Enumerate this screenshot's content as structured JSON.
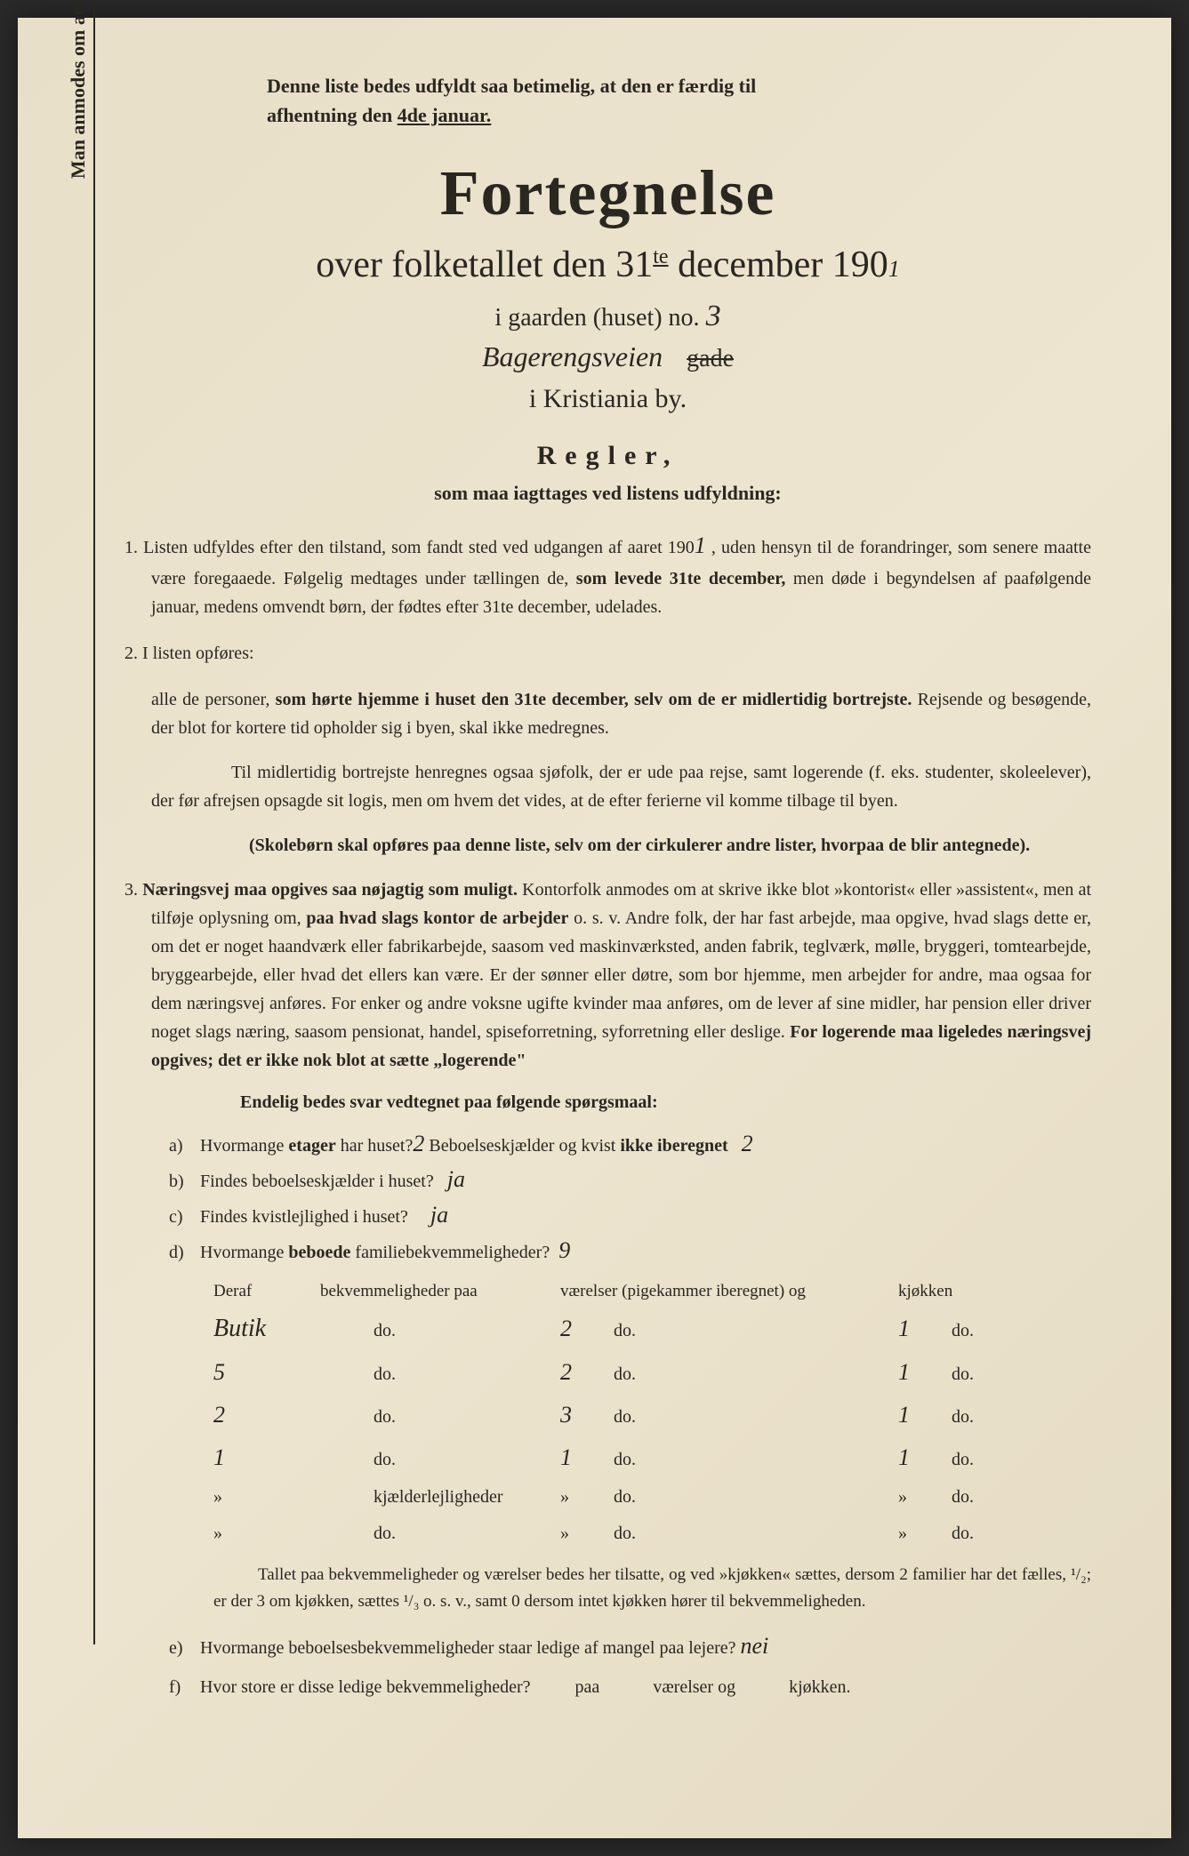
{
  "vertical_note": "Man anmodes om at gjennemlæse og nøje at befølge de paa fortegnelsen trykte overskrifter og anvisninger.",
  "header_note_1": "Denne liste bedes udfyldt saa betimelig, at den er færdig til",
  "header_note_2": "afhentning den ",
  "header_note_date": "4de januar.",
  "title": "Fortegnelse",
  "subtitle_1": "over folketallet den 31",
  "subtitle_sup": "te",
  "subtitle_2": " december 190",
  "year_hw": "1",
  "gaard_label": "i gaarden (huset) no. ",
  "gaard_no": "3",
  "street_hw": "Bagerengsveien",
  "gade_label": "gade",
  "city": "i Kristiania by.",
  "regler": "Regler,",
  "regler_sub": "som maa iagttages ved listens udfyldning:",
  "rule1_a": "1. Listen udfyldes efter den tilstand, som fandt sted ved udgangen af aaret 190",
  "rule1_year": "1",
  "rule1_b": " , uden hensyn til de forandringer, som senere maatte være foregaaede. Følgelig medtages under tællingen de, ",
  "rule1_bold": "som levede 31te december,",
  "rule1_c": " men døde i begyndelsen af paafølgende januar, medens omvendt børn, der fødtes efter 31te december, udelades.",
  "rule2_head": "2. I listen opføres:",
  "rule2_a": "alle de personer, ",
  "rule2_bold": "som hørte hjemme i huset den 31te december, selv om de er midlertidig bortrejste.",
  "rule2_b": " Rejsende og besøgende, der blot for kortere tid opholder sig i byen, skal ikke medregnes.",
  "rule2_p2": "Til midlertidig bortrejste henregnes ogsaa sjøfolk, der er ude paa rejse, samt logerende (f. eks. studenter, skoleelever), der før afrejsen opsagde sit logis, men om hvem det vides, at de efter ferierne vil komme tilbage til byen.",
  "rule2_bold2": "(Skolebørn skal opføres paa denne liste, selv om der cirkulerer andre lister, hvorpaa de blir antegnede).",
  "rule3_a": "3. ",
  "rule3_bold1": "Næringsvej maa opgives saa nøjagtig som muligt.",
  "rule3_b": " Kontorfolk anmodes om at skrive ikke blot »kontorist« eller »assistent«, men at tilføje oplysning om, ",
  "rule3_bold2": "paa hvad slags kontor de arbejder",
  "rule3_c": " o. s. v. Andre folk, der har fast arbejde, maa opgive, hvad slags dette er, om det er noget haandværk eller fabrikarbejde, saasom ved maskinværksted, anden fabrik, teglværk, mølle, bryggeri, tomtearbejde, bryggearbejde, eller hvad det ellers kan være. Er der sønner eller døtre, som bor hjemme, men arbejder for andre, maa ogsaa for dem næringsvej anføres. For enker og andre voksne ugifte kvinder maa anføres, om de lever af sine midler, har pension eller driver noget slags næring, saasom pensionat, handel, spiseforretning, syforretning eller deslige. ",
  "rule3_bold3": "For logerende maa ligeledes næringsvej opgives; det er ikke nok blot at sætte „logerende\"",
  "endelig": "Endelig bedes svar vedtegnet paa følgende spørgsmaal:",
  "qa_label": "a)",
  "qa_text1": "Hvormange ",
  "qa_bold": "etager",
  "qa_text2": " har huset?",
  "qa_hw1": "2",
  "qa_text3": "Beboelseskjælder og kvist ",
  "qa_bold2": "ikke iberegnet",
  "qa_hw2": "2",
  "qb_label": "b)",
  "qb_text": "Findes beboelseskjælder i huset?",
  "qb_hw": "ja",
  "qc_label": "c)",
  "qc_text": "Findes kvistlejlighed i huset?",
  "qc_hw": "ja",
  "qd_label": "d)",
  "qd_text1": "Hvormange ",
  "qd_bold": "beboede",
  "qd_text2": " familiebekvemmeligheder?",
  "qd_hw": "9",
  "th_deraf": "Deraf",
  "th_bekv": "bekvemmeligheder paa",
  "th_vaer": "værelser (pigekammer iberegnet) og",
  "th_kjok": "kjøkken",
  "rows": [
    {
      "c1": "Butik",
      "c2": "do.",
      "c3": "2",
      "c4": "do.",
      "c5": "1",
      "c6": "do."
    },
    {
      "c1": "5",
      "c2": "do.",
      "c3": "2",
      "c4": "do.",
      "c5": "1",
      "c6": "do."
    },
    {
      "c1": "2",
      "c2": "do.",
      "c3": "3",
      "c4": "do.",
      "c5": "1",
      "c6": "do."
    },
    {
      "c1": "1",
      "c2": "do.",
      "c3": "1",
      "c4": "do.",
      "c5": "1",
      "c6": "do."
    },
    {
      "c1": "»",
      "c2": "kjælderlejligheder",
      "c3": "»",
      "c4": "do.",
      "c5": "»",
      "c6": "do."
    },
    {
      "c1": "»",
      "c2": "do.",
      "c3": "»",
      "c4": "do.",
      "c5": "»",
      "c6": "do."
    }
  ],
  "footer_note": "Tallet paa bekvemmeligheder og værelser bedes her tilsatte, og ved »kjøkken« sættes, dersom 2 familier har det fælles, ¹/₂; er der 3 om kjøkken, sættes ¹/₃ o. s. v., samt 0 dersom intet kjøkken hører til bekvemmeligheden.",
  "qe_label": "e)",
  "qe_text": "Hvormange beboelsesbekvemmeligheder staar ledige af mangel paa lejere?",
  "qe_hw": "nei",
  "qf_label": "f)",
  "qf_text1": "Hvor store er disse ledige bekvemmeligheder?",
  "qf_text2": "paa",
  "qf_text3": "værelser og",
  "qf_text4": "kjøkken."
}
